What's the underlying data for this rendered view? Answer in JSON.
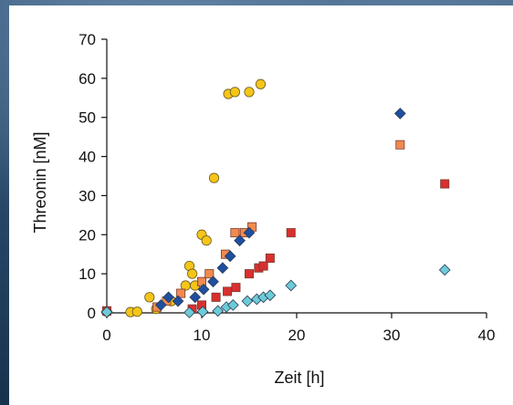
{
  "chart_data": {
    "type": "scatter",
    "title": "",
    "xlabel": "Zeit [h]",
    "ylabel": "Threonin [nM]",
    "xlim": [
      0,
      40
    ],
    "ylim": [
      0,
      70
    ],
    "xticks": [
      "0",
      "10",
      "20",
      "30",
      "40"
    ],
    "yticks": [
      "0",
      "10",
      "20",
      "30",
      "40",
      "50",
      "60",
      "70"
    ],
    "grid": false,
    "legend": "none",
    "series": [
      {
        "marker": "circle",
        "color": "#f5c518",
        "x": [
          0,
          2.5,
          3.2,
          4.5,
          5.2,
          6.8,
          8.3,
          8.7,
          9.0,
          9.3,
          10.0,
          10.5,
          11.3,
          12.8,
          13.5,
          15.0,
          16.2
        ],
        "y": [
          0.3,
          0.2,
          0.3,
          4.0,
          1.0,
          3.0,
          7.0,
          12.0,
          10.0,
          7.0,
          20.0,
          18.5,
          34.5,
          56.0,
          56.5,
          56.5,
          58.5
        ]
      },
      {
        "marker": "square",
        "color": "#f08a50",
        "x": [
          0,
          5.3,
          6.3,
          7.8,
          10.0,
          10.8,
          12.5,
          13.5,
          14.5,
          15.3,
          30.9
        ],
        "y": [
          0.5,
          1.5,
          3.0,
          5.0,
          8.0,
          10.0,
          15.0,
          20.5,
          20.5,
          22.0,
          43.0
        ]
      },
      {
        "marker": "diamond",
        "color": "#1f4fa0",
        "x": [
          0,
          5.7,
          6.5,
          7.5,
          9.3,
          10.2,
          11.2,
          12.2,
          13.0,
          14.0,
          15.0,
          30.9
        ],
        "y": [
          0.3,
          2.0,
          4.0,
          3.0,
          4.0,
          6.0,
          8.0,
          11.5,
          14.5,
          18.5,
          20.5,
          51.0
        ]
      },
      {
        "marker": "square",
        "color": "#d8302f",
        "x": [
          0,
          9.0,
          10.0,
          11.5,
          12.7,
          13.6,
          15.0,
          16.0,
          16.5,
          17.2,
          19.4,
          35.6
        ],
        "y": [
          0.5,
          1.0,
          2.0,
          4.0,
          5.5,
          6.5,
          10.0,
          11.5,
          12.0,
          14.0,
          20.5,
          33.0
        ]
      },
      {
        "marker": "diamond",
        "color": "#6dcbd8",
        "x": [
          0,
          8.7,
          10.1,
          11.7,
          12.6,
          13.3,
          14.8,
          15.8,
          16.5,
          17.2,
          19.4,
          35.6
        ],
        "y": [
          0.2,
          0.1,
          0.3,
          0.5,
          1.5,
          2.0,
          3.0,
          3.5,
          4.0,
          4.5,
          7.0,
          11.0
        ]
      }
    ]
  }
}
